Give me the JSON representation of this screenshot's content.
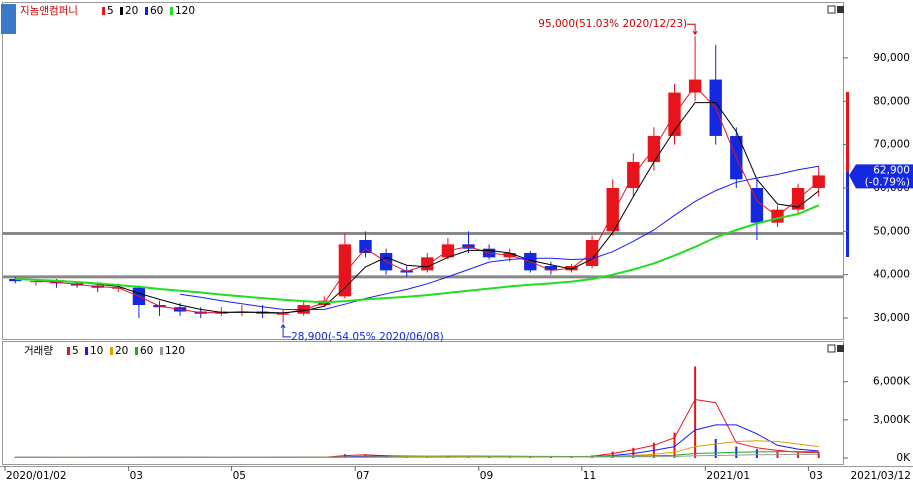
{
  "chart_data": [
    {
      "type": "candlestick",
      "title": "지놈앤컴퍼니",
      "categories": [
        "2020/01/02",
        null,
        null,
        null,
        null,
        null,
        "03",
        null,
        null,
        null,
        null,
        "05",
        null,
        null,
        null,
        null,
        null,
        "07",
        null,
        null,
        null,
        null,
        null,
        "09",
        null,
        null,
        null,
        null,
        "11",
        null,
        null,
        null,
        null,
        null,
        "2021/01",
        null,
        null,
        null,
        null,
        "03"
      ],
      "last_date": "2021/03/12",
      "open": [
        39000,
        38500,
        38500,
        38000,
        37500,
        37000,
        37000,
        33000,
        32500,
        31500,
        31000,
        31500,
        31500,
        31000,
        31000,
        33000,
        35000,
        48000,
        45000,
        41000,
        41000,
        44000,
        47000,
        46000,
        44000,
        45000,
        42000,
        41000,
        42000,
        50000,
        60000,
        66000,
        72000,
        82000,
        85000,
        72000,
        60000,
        52000,
        55000,
        60000
      ],
      "high": [
        39500,
        39000,
        39000,
        38500,
        38000,
        38000,
        37500,
        34000,
        33500,
        32500,
        32500,
        33000,
        33000,
        32000,
        34000,
        35000,
        49500,
        50000,
        46000,
        42000,
        45000,
        48500,
        50000,
        47000,
        46000,
        45500,
        43000,
        42500,
        49000,
        62000,
        68000,
        74000,
        84000,
        95000,
        93000,
        74000,
        62000,
        56000,
        61000,
        65000
      ],
      "low": [
        38000,
        37500,
        37000,
        37000,
        36000,
        36000,
        30000,
        30500,
        30500,
        30000,
        30500,
        30500,
        30000,
        28900,
        30500,
        32500,
        34500,
        44000,
        40000,
        39500,
        40500,
        43500,
        45000,
        43500,
        43000,
        40500,
        40000,
        40500,
        41500,
        49000,
        58000,
        64000,
        70000,
        80000,
        70000,
        60000,
        48000,
        51000,
        54000,
        58000
      ],
      "close": [
        38500,
        38500,
        38000,
        37500,
        37000,
        37000,
        33000,
        32500,
        31500,
        31000,
        31500,
        31500,
        31000,
        31000,
        33000,
        34000,
        47000,
        45000,
        41000,
        40500,
        44000,
        47000,
        46000,
        44000,
        45000,
        41000,
        41000,
        42000,
        48000,
        60000,
        66000,
        72000,
        82000,
        85000,
        72000,
        62000,
        52000,
        55000,
        60000,
        62900
      ],
      "up_color": "#e8141c",
      "down_color": "#1428e0",
      "series": [
        {
          "name": "5",
          "color": "#e8141c",
          "values": [
            null,
            38500,
            38250,
            37750,
            37250,
            37000,
            35000,
            32750,
            32000,
            31250,
            31250,
            31500,
            31250,
            31000,
            32000,
            33500,
            40500,
            46000,
            43000,
            40750,
            42250,
            45500,
            46500,
            45000,
            44500,
            43000,
            41000,
            41500,
            45000,
            54000,
            63000,
            69000,
            77000,
            83500,
            78500,
            67000,
            57000,
            53500,
            57500,
            61450
          ]
        },
        {
          "name": "20",
          "color": "#000000",
          "values": [
            null,
            null,
            38700,
            38300,
            37800,
            37300,
            35700,
            34300,
            33000,
            32000,
            31300,
            31300,
            31300,
            31200,
            31700,
            32700,
            37000,
            41800,
            44000,
            42200,
            41800,
            44000,
            45600,
            45600,
            45000,
            43300,
            42300,
            41300,
            43600,
            49700,
            58000,
            66000,
            73300,
            79700,
            79700,
            73000,
            62000,
            56300,
            55600,
            59300
          ]
        },
        {
          "name": "60",
          "color": "#1a1aff",
          "values": [
            null,
            null,
            null,
            null,
            null,
            null,
            null,
            null,
            35500,
            34800,
            34000,
            33300,
            32600,
            32000,
            31900,
            32000,
            33200,
            34500,
            35600,
            36600,
            37900,
            39500,
            41200,
            42900,
            43500,
            43800,
            43800,
            43500,
            43700,
            45300,
            47700,
            50300,
            53700,
            56900,
            59400,
            61300,
            62300,
            63100,
            64200,
            65000
          ]
        },
        {
          "name": "120",
          "color": "#22dd22",
          "values": [
            39000,
            38800,
            38600,
            38300,
            38000,
            37600,
            37200,
            36700,
            36300,
            35900,
            35400,
            35000,
            34600,
            34200,
            33900,
            33600,
            33900,
            34300,
            34600,
            34900,
            35300,
            35800,
            36300,
            36800,
            37300,
            37700,
            38000,
            38400,
            39000,
            40000,
            41200,
            42600,
            44400,
            46400,
            48600,
            50300,
            51800,
            53000,
            54000,
            56000
          ]
        }
      ],
      "hlines": [
        49500,
        39500
      ],
      "max_label": "95,000(51.03% 2020/12/23)",
      "min_label": "28,900(-54.05% 2020/06/08)",
      "last_price_label": "62,900",
      "last_change_label": "(-0.79%)",
      "ylim": [
        25400,
        99200
      ],
      "yticks": [
        {
          "value": 30000,
          "label": "30,000"
        },
        {
          "value": 40000,
          "label": "40,000"
        },
        {
          "value": 50000,
          "label": "50,000"
        },
        {
          "value": 60000,
          "label": "60,000"
        },
        {
          "value": 70000,
          "label": "70,000"
        },
        {
          "value": 80000,
          "label": "80,000"
        },
        {
          "value": 90000,
          "label": "90,000"
        }
      ]
    },
    {
      "type": "bar",
      "title": "거래량",
      "values": [
        50,
        40,
        40,
        40,
        50,
        40,
        80,
        60,
        50,
        40,
        40,
        50,
        50,
        60,
        60,
        70,
        300,
        200,
        150,
        100,
        120,
        150,
        160,
        120,
        100,
        110,
        90,
        80,
        200,
        500,
        800,
        1200,
        2000,
        7200,
        1500,
        900,
        700,
        500,
        400,
        450
      ],
      "series": [
        {
          "name": "5",
          "color": "#e8141c",
          "values": [
            50,
            45,
            40,
            40,
            45,
            45,
            60,
            70,
            55,
            45,
            40,
            45,
            50,
            55,
            60,
            65,
            185,
            250,
            175,
            125,
            110,
            135,
            155,
            140,
            110,
            105,
            100,
            85,
            140,
            350,
            650,
            1000,
            1600,
            4600,
            4350,
            1200,
            800,
            600,
            450,
            425
          ]
        },
        {
          "name": "10",
          "color": "#1a1aff",
          "values": [
            50,
            45,
            43,
            42,
            44,
            44,
            50,
            55,
            57,
            53,
            48,
            45,
            45,
            48,
            51,
            56,
            100,
            140,
            160,
            150,
            130,
            130,
            145,
            145,
            135,
            120,
            110,
            100,
            115,
            200,
            350,
            600,
            900,
            2200,
            2600,
            2600,
            1900,
            1000,
            700,
            550
          ]
        },
        {
          "name": "20",
          "color": "#e0a000",
          "values": [
            50,
            50,
            48,
            46,
            45,
            45,
            47,
            49,
            51,
            51,
            50,
            49,
            48,
            49,
            50,
            52,
            70,
            90,
            105,
            115,
            120,
            125,
            130,
            135,
            135,
            130,
            125,
            120,
            120,
            150,
            200,
            300,
            450,
            900,
            1100,
            1300,
            1350,
            1300,
            1100,
            900
          ]
        },
        {
          "name": "60",
          "color": "#22aa22",
          "values": [
            60,
            58,
            56,
            54,
            52,
            50,
            50,
            50,
            50,
            50,
            50,
            50,
            50,
            51,
            52,
            53,
            60,
            65,
            70,
            75,
            80,
            85,
            90,
            95,
            100,
            105,
            108,
            110,
            112,
            125,
            145,
            170,
            210,
            350,
            400,
            450,
            480,
            500,
            500,
            500
          ]
        },
        {
          "name": "120",
          "color": "#999999",
          "values": [
            70,
            68,
            66,
            64,
            62,
            60,
            58,
            56,
            55,
            54,
            53,
            52,
            52,
            52,
            52,
            53,
            56,
            58,
            60,
            62,
            64,
            66,
            68,
            70,
            72,
            74,
            75,
            76,
            78,
            85,
            95,
            105,
            120,
            180,
            200,
            230,
            250,
            270,
            280,
            290
          ]
        }
      ],
      "ylim": [
        0,
        8100
      ],
      "yticks": [
        {
          "value": 0,
          "label": "0K"
        },
        {
          "value": 3000,
          "label": "3,000K"
        },
        {
          "value": 6000,
          "label": "6,000K"
        }
      ]
    }
  ]
}
